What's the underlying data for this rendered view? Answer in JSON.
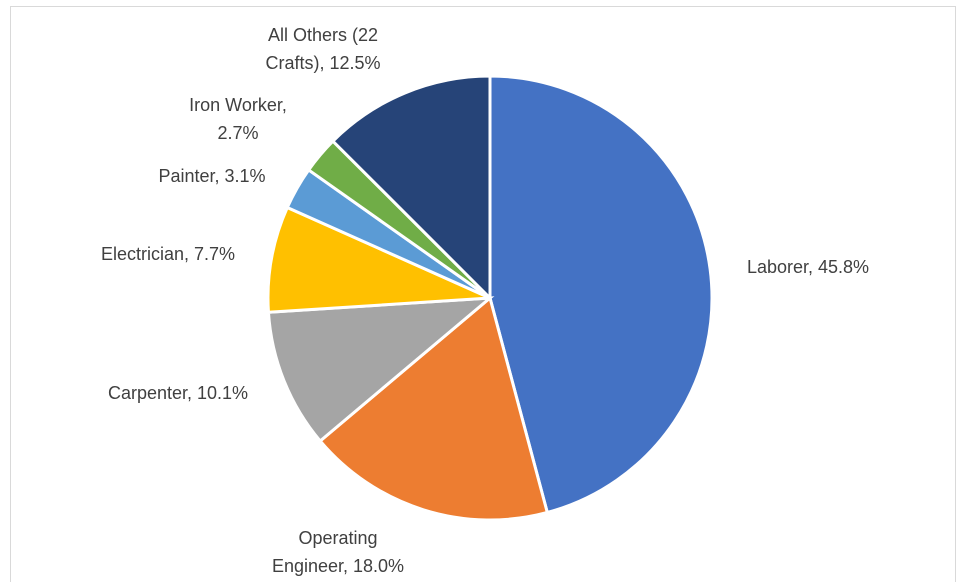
{
  "chart_data": {
    "type": "pie",
    "values": [
      45.8,
      18.0,
      10.1,
      7.7,
      3.1,
      2.7,
      12.5
    ],
    "value_labels": [
      "Laborer, 45.8%",
      "Operating Engineer, 18.0%",
      "Carpenter, 10.1%",
      "Electrician, 7.7%",
      "Painter, 3.1%",
      "Iron Worker, 2.7%",
      "All Others (22 Crafts), 12.5%"
    ],
    "colors": [
      "#4472c4",
      "#ed7d31",
      "#a5a5a5",
      "#ffc000",
      "#5b9bd5",
      "#70ad47",
      "#264478"
    ]
  }
}
